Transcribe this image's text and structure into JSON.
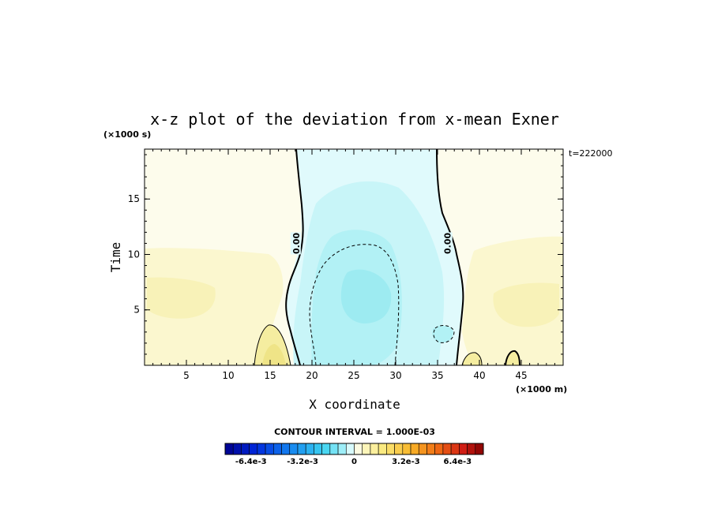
{
  "chart_data": {
    "type": "heatmap",
    "title": "x-z plot of the deviation from x-mean Exner",
    "xlabel": "X coordinate",
    "ylabel": "Time",
    "x_unit": "(×1000 m)",
    "y_unit": "(×1000 s)",
    "xlim": [
      0,
      50
    ],
    "ylim": [
      0,
      19.5
    ],
    "x_ticks": [
      5,
      10,
      15,
      20,
      25,
      30,
      35,
      40,
      45
    ],
    "y_ticks": [
      5,
      10,
      15
    ],
    "time_annotation": "t=222000",
    "contour_interval_text": "CONTOUR INTERVAL = 1.000E-03",
    "contour_labels": [
      {
        "text": "0.00",
        "x": 18.1,
        "y": 11.0
      },
      {
        "text": "0.00",
        "x": 36.2,
        "y": 11.0
      }
    ],
    "regions": [
      {
        "name": "positive-left-band",
        "value": 0.0004,
        "color": "#fbf7cf"
      },
      {
        "name": "positive-right-band",
        "value": 0.0004,
        "color": "#fbf7cf"
      },
      {
        "name": "positive-left-blob",
        "value": 0.0012,
        "color": "#f6eea4"
      },
      {
        "name": "central-negative",
        "value": -0.0004,
        "color": "#def9fb"
      },
      {
        "name": "central-mid",
        "value": -0.0008,
        "color": "#c5f4f8"
      },
      {
        "name": "central-core",
        "value": -0.0016,
        "color": "#a3eef3"
      }
    ],
    "colorbar": {
      "range": [
        -0.008,
        0.008
      ],
      "levels": 32,
      "labels": [
        "-6.4e-3",
        "-3.2e-3",
        "0",
        "3.2e-3",
        "6.4e-3"
      ],
      "label_values": [
        -0.0064,
        -0.0032,
        0,
        0.0032,
        0.0064
      ]
    }
  }
}
